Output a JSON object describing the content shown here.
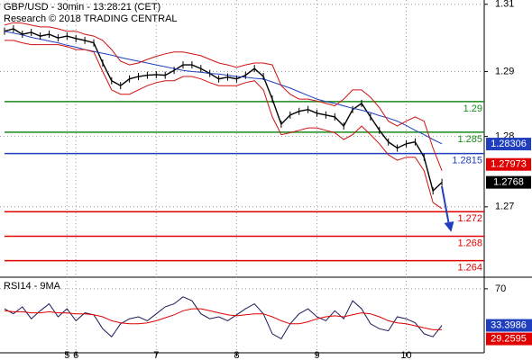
{
  "chart_data": {
    "type": "ohlc-study",
    "title": "GBP/USD - 30min - 13:28:21 (CET)",
    "subtitle": "Research © 2018 TRADING CENTRAL",
    "categories": [
      null,
      null,
      null,
      null,
      null,
      null,
      null,
      "5",
      "6",
      null,
      null,
      null,
      null,
      null,
      null,
      null,
      null,
      "7",
      null,
      null,
      null,
      null,
      null,
      null,
      null,
      null,
      "8",
      null,
      null,
      null,
      null,
      null,
      null,
      null,
      null,
      "9",
      null,
      null,
      null,
      null,
      null,
      null,
      null,
      null,
      null,
      "10",
      null,
      null,
      null,
      null
    ],
    "ylim": [
      1.2613,
      1.3066
    ],
    "yticks": [
      {
        "value": 1.3059,
        "label": "1.31"
      },
      {
        "value": 1.2949,
        "label": "1.29"
      },
      {
        "value": 1.2843,
        "label": "1.28"
      },
      {
        "value": 1.2728,
        "label": "1.27"
      }
    ],
    "grid": true,
    "series": [
      {
        "name": "GBP/USD",
        "color": "#000000",
        "values": [
          1.3015,
          1.3019,
          1.301,
          1.3013,
          1.3007,
          1.301,
          1.3004,
          1.3007,
          1.3003,
          1.3,
          1.2996,
          1.2963,
          1.2934,
          1.2926,
          1.2937,
          1.2941,
          1.2943,
          1.2944,
          1.2943,
          1.2951,
          1.296,
          1.296,
          1.2954,
          1.2946,
          1.2937,
          1.294,
          1.2937,
          1.2943,
          1.2954,
          1.2941,
          1.2904,
          1.2863,
          1.2878,
          1.2884,
          1.2887,
          1.2881,
          1.2878,
          1.2875,
          1.286,
          1.2887,
          1.2897,
          1.2875,
          1.2853,
          1.2834,
          1.2824,
          1.2831,
          1.2834,
          1.2809,
          1.2754,
          1.2768
        ]
      },
      {
        "color": "#1f3fbf",
        "values": [
          1.3015,
          1.3012,
          1.3009,
          1.3005,
          1.3002,
          1.2999,
          1.2996,
          1.2992,
          1.2989,
          1.2985,
          1.2982,
          1.2979,
          1.2976,
          1.2972,
          1.2969,
          1.2966,
          1.2963,
          1.296,
          1.2957,
          1.2954,
          1.2951,
          1.2949,
          1.2948,
          1.2946,
          1.2945,
          1.2943,
          1.2941,
          1.294,
          1.2938,
          1.2937,
          1.2932,
          1.2927,
          1.2922,
          1.2916,
          1.291,
          1.2904,
          1.29,
          1.2897,
          1.2893,
          1.2889,
          1.2886,
          1.2882,
          1.2877,
          1.2873,
          1.2868,
          1.2861,
          1.2853,
          1.2846,
          1.2838,
          1.2831
        ]
      },
      {
        "color": "#d01010",
        "values": [
          1.3025,
          1.3029,
          1.3028,
          1.3025,
          1.3022,
          1.3022,
          1.3019,
          1.3015,
          1.3015,
          1.301,
          1.3007,
          1.3,
          1.2985,
          1.2966,
          1.296,
          1.2963,
          1.2969,
          1.2974,
          1.2978,
          1.2981,
          1.2981,
          1.2978,
          1.2975,
          1.2969,
          1.2963,
          1.296,
          1.2956,
          1.296,
          1.2963,
          1.2963,
          1.296,
          1.2926,
          1.2912,
          1.2904,
          1.2904,
          1.2901,
          1.2897,
          1.2893,
          1.2904,
          1.2919,
          1.2919,
          1.2907,
          1.289,
          1.2868,
          1.286,
          1.2868,
          1.2875,
          1.2868,
          1.2824,
          1.2787
        ]
      },
      {
        "color": "#d01010",
        "values": [
          1.3,
          1.3,
          1.2996,
          1.2993,
          1.2993,
          1.2993,
          1.2993,
          1.299,
          1.2985,
          1.2985,
          1.2981,
          1.2949,
          1.2919,
          1.2912,
          1.2912,
          1.2919,
          1.2926,
          1.2931,
          1.2934,
          1.2934,
          1.2941,
          1.2941,
          1.2937,
          1.2931,
          1.2926,
          1.2926,
          1.2926,
          1.2931,
          1.2934,
          1.2919,
          1.2875,
          1.2846,
          1.2849,
          1.2853,
          1.2857,
          1.2857,
          1.2853,
          1.2849,
          1.2838,
          1.2846,
          1.286,
          1.2846,
          1.2831,
          1.2813,
          1.2804,
          1.2809,
          1.2809,
          1.2787,
          1.2735,
          1.2725
        ]
      }
    ],
    "levels": [
      {
        "value": 1.29,
        "color": "#1a8a1a"
      },
      {
        "value": 1.285,
        "color": "#1a8a1a"
      },
      {
        "value": 1.2815,
        "color": "#1f3fbf"
      },
      {
        "value": 1.272,
        "color": "#e00000"
      },
      {
        "value": 1.268,
        "color": "#e00000"
      },
      {
        "value": 1.264,
        "color": "#e00000"
      }
    ],
    "price_tags": [
      {
        "value": 1.28306,
        "color": "#1f3fbf"
      },
      {
        "value": 1.27973,
        "color": "#e00000"
      },
      {
        "value": 1.2768,
        "color": "#000000"
      }
    ],
    "rsi": {
      "title": "RSI14 - 9MA",
      "ylim": [
        6,
        78
      ],
      "yticks": [
        70
      ],
      "series": [
        {
          "color": "#1a1a5a",
          "values": [
            50,
            45,
            52,
            40,
            48,
            55,
            42,
            50,
            38,
            46,
            44,
            30,
            22,
            35,
            40,
            42,
            38,
            45,
            52,
            55,
            62,
            58,
            45,
            40,
            42,
            38,
            44,
            50,
            55,
            45,
            25,
            20,
            35,
            45,
            50,
            42,
            38,
            48,
            40,
            58,
            50,
            35,
            30,
            28,
            42,
            40,
            36,
            25,
            22,
            33.3986
          ]
        },
        {
          "color": "#e00000",
          "values": [
            48,
            47,
            47,
            46,
            46,
            47,
            46,
            46,
            45,
            45,
            44,
            42,
            38,
            36,
            35,
            35,
            36,
            38,
            41,
            44,
            48,
            50,
            50,
            48,
            46,
            44,
            43,
            44,
            45,
            45,
            42,
            38,
            35,
            35,
            37,
            40,
            42,
            43,
            42,
            44,
            46,
            45,
            42,
            38,
            36,
            35,
            33,
            31,
            29,
            29.2595
          ]
        }
      ]
    }
  }
}
